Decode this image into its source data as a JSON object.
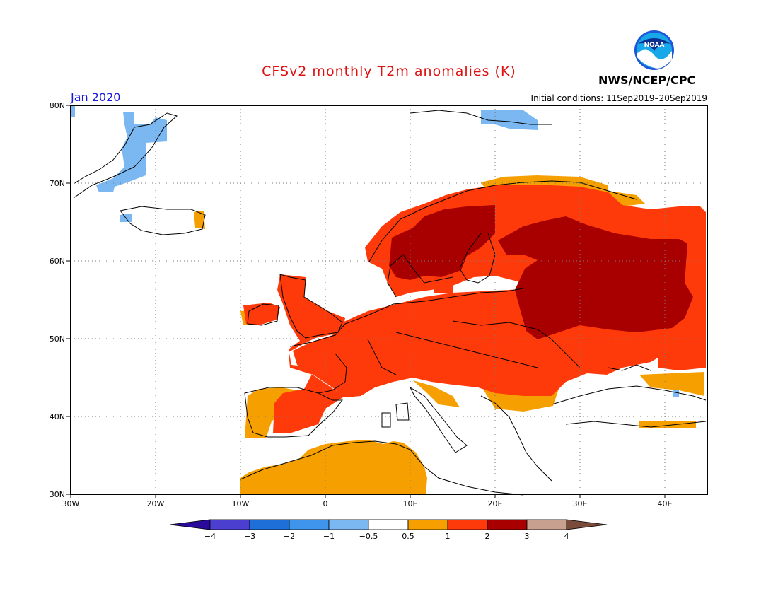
{
  "header": {
    "title": "CFSv2 monthly T2m anomalies (K)",
    "agency": "NWS/NCEP/CPC",
    "logo_text": "NOAA",
    "month": "Jan 2020",
    "initial_conditions": "Initial conditions: 11Sep2019–20Sep2019"
  },
  "map": {
    "region": "Europe / North Atlantic",
    "lon_range_deg": [
      -30,
      45
    ],
    "lat_range_deg": [
      30,
      80
    ],
    "gridlines": "dotted",
    "lat_labels": [
      "80N",
      "70N",
      "60N",
      "50N",
      "40N",
      "30N"
    ],
    "lon_labels": [
      "30W",
      "20W",
      "10W",
      "0",
      "10E",
      "20E",
      "30E",
      "40E"
    ],
    "anomaly_regions": [
      {
        "area": "Svalbard / Greenland coast",
        "category": "-1 to -0.5"
      },
      {
        "area": "Iberia south & North Africa",
        "category": "0.5 to 1"
      },
      {
        "area": "Western & Central Europe",
        "category": "1 to 2"
      },
      {
        "area": "Scandinavia & Western Russia",
        "category": "2 to 3"
      },
      {
        "area": "Mediterranean / Atlantic",
        "category": "-0.5 to 0.5"
      }
    ]
  },
  "colorbar": {
    "labels": [
      "−4",
      "−3",
      "−2",
      "−1",
      "−0.5",
      "0.5",
      "1",
      "2",
      "3",
      "4"
    ],
    "colors": [
      "#2a0a9a",
      "#4b3fd0",
      "#1f6fd8",
      "#3f95ec",
      "#7bb7f0",
      "#ffffff",
      "#f5a000",
      "#ff3a0a",
      "#a80000",
      "#c8a090",
      "#7a4a3a"
    ]
  },
  "colors": {
    "neutral": "#ffffff",
    "warm1": "#f5a000",
    "warm2": "#ff3a0a",
    "warm3": "#a80000",
    "cool1": "#7bb7f0"
  }
}
